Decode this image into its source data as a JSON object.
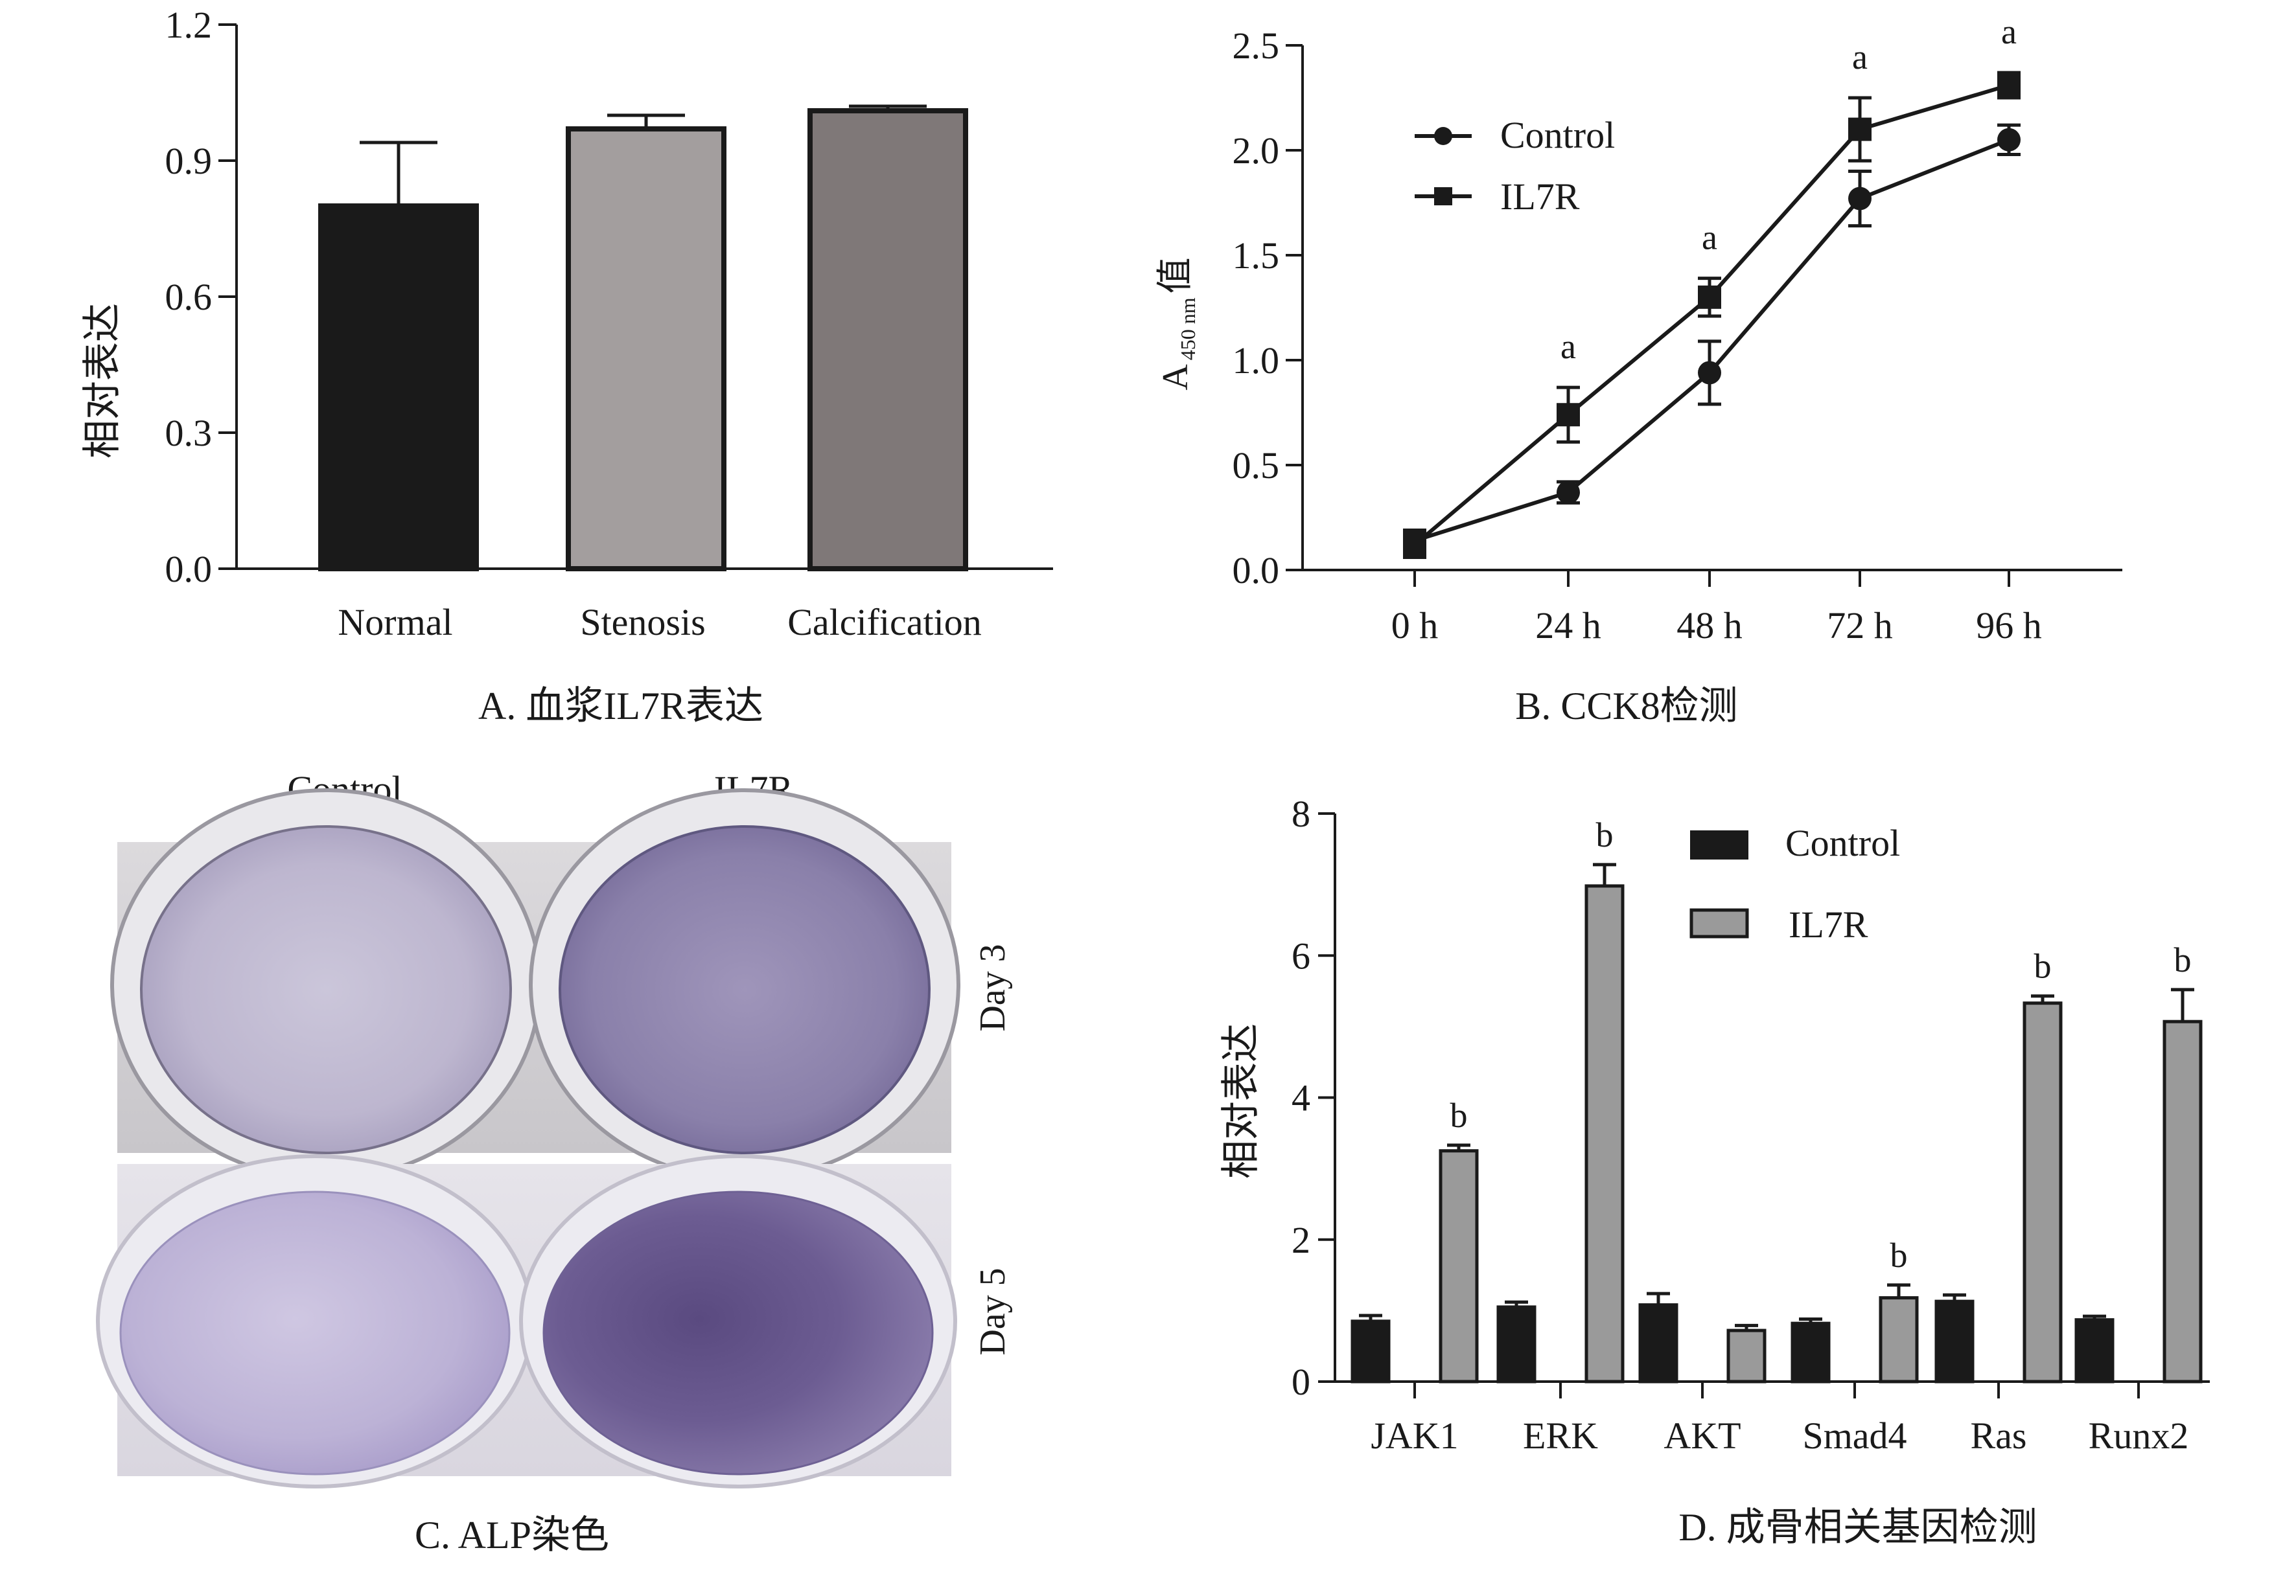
{
  "colors": {
    "normal": "#1a1a1a",
    "stenosis": "#a39e9e",
    "calcification": "#7f7878",
    "control": "#1a1a1a",
    "il7r": "#9a9a9a",
    "well_light": "#c9c3d8",
    "well_dark": "#6a5a8c"
  },
  "chart_data": [
    {
      "panel": "A",
      "type": "bar",
      "caption": "A. 血浆IL7R表达",
      "ylabel": "相对表达",
      "ylim": [
        0,
        1.2
      ],
      "yticks": [
        "0.0",
        "0.3",
        "0.6",
        "0.9",
        "1.2"
      ],
      "categories": [
        "Normal",
        "Stenosis",
        "Calcification"
      ],
      "values": [
        0.8,
        0.97,
        1.01
      ],
      "errors": [
        0.14,
        0.03,
        0.01
      ]
    },
    {
      "panel": "B",
      "type": "line",
      "caption": "B. CCK8检测",
      "ylabel": "A",
      "ylabel_sub": "450 nm",
      "ylabel_suffix": "值",
      "ylim": [
        0,
        2.5
      ],
      "yticks": [
        "0.0",
        "0.5",
        "1.0",
        "1.5",
        "2.0",
        "2.5"
      ],
      "x": [
        "0 h",
        "24 h",
        "48 h",
        "72 h",
        "96 h"
      ],
      "series": [
        {
          "name": "Control",
          "marker": "circle",
          "values": [
            0.14,
            0.37,
            0.94,
            1.77,
            2.05
          ],
          "errors": [
            0.05,
            0.05,
            0.15,
            0.13,
            0.07
          ]
        },
        {
          "name": "IL7R",
          "marker": "square",
          "values": [
            0.12,
            0.74,
            1.3,
            2.1,
            2.31
          ],
          "errors": [
            0.06,
            0.13,
            0.09,
            0.15,
            0.06
          ]
        }
      ],
      "annotations": [
        "",
        "a",
        "a",
        "a",
        "a"
      ]
    },
    {
      "panel": "D",
      "type": "bar",
      "caption": "D. 成骨相关基因检测",
      "ylabel": "相对表达",
      "ylim": [
        0,
        8
      ],
      "yticks": [
        "0",
        "2",
        "4",
        "6",
        "8"
      ],
      "categories": [
        "JAK1",
        "ERK",
        "AKT",
        "Smad4",
        "Ras",
        "Runx2"
      ],
      "series": [
        {
          "name": "Control",
          "values": [
            0.85,
            1.05,
            1.08,
            0.82,
            1.13,
            0.87
          ],
          "errors": [
            0.08,
            0.07,
            0.16,
            0.06,
            0.09,
            0.05
          ]
        },
        {
          "name": "IL7R",
          "values": [
            3.25,
            6.98,
            0.72,
            1.18,
            5.33,
            5.07
          ],
          "errors": [
            0.08,
            0.3,
            0.07,
            0.18,
            0.1,
            0.45
          ]
        }
      ],
      "annotations": [
        "b",
        "b",
        "",
        "b",
        "b",
        "b"
      ]
    }
  ],
  "panel_c": {
    "caption": "C. ALP染色",
    "columns": [
      "Control",
      "IL7R"
    ],
    "rows": [
      "Day 3",
      "Day 5"
    ]
  }
}
